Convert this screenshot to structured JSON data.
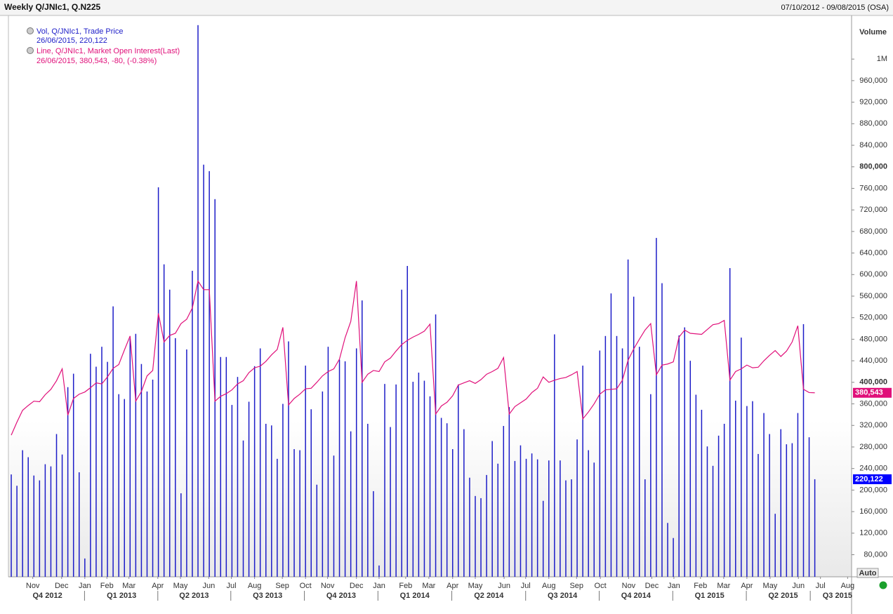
{
  "header": {
    "title": "Weekly Q/JNIc1, Q.N225",
    "range": "07/10/2012 - 09/08/2015 (OSA)"
  },
  "controls": {
    "auto": "Auto"
  },
  "chart_data": {
    "type": "combo",
    "y_axis_title": "Volume",
    "categories": [
      null,
      null,
      null,
      null,
      null,
      null,
      null,
      null,
      null,
      null,
      null,
      null,
      null,
      null,
      null,
      null,
      null,
      null,
      null,
      null,
      null,
      null,
      null,
      null,
      null,
      null,
      null,
      null,
      null,
      null,
      null,
      null,
      null,
      null,
      null,
      null,
      null,
      null,
      null,
      null,
      null,
      null,
      null,
      null,
      null,
      null,
      null,
      null,
      null,
      null,
      null,
      null,
      null,
      null,
      null,
      null,
      null,
      null,
      null,
      null,
      null,
      null,
      null,
      null,
      null,
      null,
      null,
      null,
      null,
      null,
      null,
      null,
      null,
      null,
      null,
      null,
      null,
      null,
      null,
      null,
      null,
      null,
      null,
      null,
      null,
      null,
      null,
      null,
      null,
      null,
      null,
      null,
      null,
      null,
      null,
      null,
      null,
      null,
      null,
      null,
      null,
      null,
      null,
      null,
      null,
      null,
      null,
      null,
      null,
      null,
      null,
      null,
      null,
      null,
      null,
      null,
      null,
      null,
      null,
      null,
      null,
      null,
      null,
      null,
      null,
      null,
      null,
      null,
      null,
      null,
      null,
      null,
      null,
      null,
      null,
      null,
      null,
      null,
      null,
      null,
      null,
      null,
      null
    ],
    "xlim": [
      -0.5,
      148.5
    ],
    "xticks": [
      {
        "value": 3.8,
        "label": "Nov"
      },
      {
        "value": 8.9,
        "label": "Dec"
      },
      {
        "value": 13.0,
        "label": "Jan"
      },
      {
        "value": 16.9,
        "label": "Feb"
      },
      {
        "value": 20.8,
        "label": "Mar"
      },
      {
        "value": 25.9,
        "label": "Apr"
      },
      {
        "value": 29.9,
        "label": "May"
      },
      {
        "value": 34.9,
        "label": "Jun"
      },
      {
        "value": 38.9,
        "label": "Jul"
      },
      {
        "value": 43.0,
        "label": "Aug"
      },
      {
        "value": 47.9,
        "label": "Sep"
      },
      {
        "value": 52.0,
        "label": "Oct"
      },
      {
        "value": 55.9,
        "label": "Nov"
      },
      {
        "value": 61.0,
        "label": "Dec"
      },
      {
        "value": 65.0,
        "label": "Jan"
      },
      {
        "value": 69.7,
        "label": "Feb"
      },
      {
        "value": 73.8,
        "label": "Mar"
      },
      {
        "value": 78.0,
        "label": "Apr"
      },
      {
        "value": 82.0,
        "label": "May"
      },
      {
        "value": 87.1,
        "label": "Jun"
      },
      {
        "value": 90.9,
        "label": "Jul"
      },
      {
        "value": 95.0,
        "label": "Aug"
      },
      {
        "value": 99.9,
        "label": "Sep"
      },
      {
        "value": 104.1,
        "label": "Oct"
      },
      {
        "value": 109.1,
        "label": "Nov"
      },
      {
        "value": 113.2,
        "label": "Dec"
      },
      {
        "value": 117.1,
        "label": "Jan"
      },
      {
        "value": 121.8,
        "label": "Feb"
      },
      {
        "value": 125.9,
        "label": "Mar"
      },
      {
        "value": 130.0,
        "label": "Apr"
      },
      {
        "value": 134.1,
        "label": "May"
      },
      {
        "value": 139.1,
        "label": "Jun"
      },
      {
        "value": 143.0,
        "label": "Jul"
      },
      {
        "value": 147.8,
        "label": "Aug"
      }
    ],
    "quarter_ticks": [
      {
        "value": 6.4,
        "label": "Q4 2012"
      },
      {
        "value": 19.5,
        "label": "Q1 2013"
      },
      {
        "value": 32.3,
        "label": "Q2 2013"
      },
      {
        "value": 45.3,
        "label": "Q3 2013"
      },
      {
        "value": 58.3,
        "label": "Q4 2013"
      },
      {
        "value": 71.3,
        "label": "Q1 2014"
      },
      {
        "value": 84.4,
        "label": "Q2 2014"
      },
      {
        "value": 97.4,
        "label": "Q3 2014"
      },
      {
        "value": 110.4,
        "label": "Q4 2014"
      },
      {
        "value": 123.4,
        "label": "Q1 2015"
      },
      {
        "value": 136.4,
        "label": "Q2 2015"
      },
      {
        "value": 146.0,
        "label": "Q3 2015"
      }
    ],
    "ylim": [
      39000,
      1081000
    ],
    "yticks": [
      {
        "value": 80000,
        "label": "80,000"
      },
      {
        "value": 120000,
        "label": "120,000"
      },
      {
        "value": 160000,
        "label": "160,000"
      },
      {
        "value": 200000,
        "label": "200,000"
      },
      {
        "value": 240000,
        "label": "240,000"
      },
      {
        "value": 280000,
        "label": "280,000"
      },
      {
        "value": 320000,
        "label": "320,000"
      },
      {
        "value": 360000,
        "label": "360,000"
      },
      {
        "value": 400000,
        "label": "400,000",
        "bold": true
      },
      {
        "value": 440000,
        "label": "440,000"
      },
      {
        "value": 480000,
        "label": "480,000"
      },
      {
        "value": 520000,
        "label": "520,000"
      },
      {
        "value": 560000,
        "label": "560,000"
      },
      {
        "value": 600000,
        "label": "600,000"
      },
      {
        "value": 640000,
        "label": "640,000"
      },
      {
        "value": 680000,
        "label": "680,000"
      },
      {
        "value": 720000,
        "label": "720,000"
      },
      {
        "value": 760000,
        "label": "760,000"
      },
      {
        "value": 800000,
        "label": "800,000",
        "bold": true
      },
      {
        "value": 840000,
        "label": "840,000"
      },
      {
        "value": 880000,
        "label": "880,000"
      },
      {
        "value": 920000,
        "label": "920,000"
      },
      {
        "value": 960000,
        "label": "960,000"
      },
      {
        "value": 1000000,
        "label": "1M"
      }
    ],
    "grid": false,
    "series": [
      {
        "name": "Vol, Q/JNIc1, Trade Price",
        "legend_detail": "26/06/2015, 220,122",
        "last_label": "220,122",
        "type": "bar",
        "color": "#1c1cc8",
        "label_color": "#0000ff",
        "values": [
          229000,
          208000,
          274000,
          261000,
          227000,
          218000,
          248000,
          244000,
          304000,
          266000,
          391000,
          416000,
          233000,
          73000,
          453000,
          429000,
          466000,
          438000,
          541000,
          378000,
          369000,
          481000,
          490000,
          434000,
          383000,
          405000,
          762000,
          619000,
          572000,
          482000,
          194000,
          461000,
          607000,
          1063000,
          804000,
          792000,
          740000,
          447000,
          447000,
          358000,
          410000,
          292000,
          364000,
          430000,
          463000,
          323000,
          320000,
          258000,
          360000,
          476000,
          276000,
          274000,
          431000,
          350000,
          210000,
          383000,
          466000,
          264000,
          442000,
          439000,
          309000,
          463000,
          552000,
          323000,
          198000,
          60000,
          397000,
          317000,
          396000,
          572000,
          616000,
          401000,
          418000,
          403000,
          374000,
          526000,
          334000,
          324000,
          276000,
          396000,
          313000,
          223000,
          189000,
          185000,
          228000,
          291000,
          249000,
          319000,
          354000,
          254000,
          283000,
          258000,
          268000,
          257000,
          180000,
          255000,
          489000,
          255000,
          218000,
          220000,
          294000,
          431000,
          274000,
          251000,
          459000,
          486000,
          565000,
          486000,
          463000,
          628000,
          559000,
          466000,
          220000,
          378000,
          668000,
          584000,
          139000,
          111000,
          487000,
          502000,
          440000,
          377000,
          349000,
          281000,
          245000,
          301000,
          323000,
          612000,
          366000,
          483000,
          356000,
          365000,
          267000,
          343000,
          304000,
          156000,
          313000,
          285000,
          287000,
          343000,
          508000,
          298000,
          220122
        ]
      },
      {
        "name": "Line, Q/JNIc1, Market Open Interest(Last)",
        "legend_detail": "26/06/2015, 380,543, -80, (-0.38%)",
        "last_label": "380,543",
        "type": "line",
        "color": "#e0107a",
        "label_color": "#e0107a",
        "values": [
          302000,
          326000,
          348000,
          357000,
          365000,
          364000,
          377000,
          387000,
          403000,
          425000,
          339000,
          370000,
          378000,
          382000,
          390000,
          399000,
          397000,
          410000,
          426000,
          433000,
          460000,
          486000,
          365000,
          383000,
          412000,
          422000,
          528000,
          475000,
          487000,
          491000,
          509000,
          517000,
          538000,
          588000,
          572000,
          572000,
          365000,
          374000,
          379000,
          386000,
          397000,
          403000,
          418000,
          427000,
          430000,
          439000,
          451000,
          461000,
          502000,
          358000,
          370000,
          378000,
          388000,
          389000,
          400000,
          412000,
          420000,
          425000,
          443000,
          483000,
          513000,
          588000,
          400000,
          415000,
          422000,
          420000,
          438000,
          445000,
          458000,
          470000,
          478000,
          484000,
          489000,
          495000,
          508000,
          341000,
          356000,
          363000,
          375000,
          395000,
          399000,
          403000,
          398000,
          405000,
          415000,
          420000,
          426000,
          446000,
          341000,
          355000,
          362000,
          369000,
          381000,
          389000,
          410000,
          400000,
          404000,
          407000,
          409000,
          414000,
          420000,
          332000,
          345000,
          360000,
          378000,
          386000,
          387000,
          388000,
          404000,
          441000,
          462000,
          480000,
          497000,
          509000,
          414000,
          432000,
          434000,
          438000,
          484000,
          497000,
          491000,
          490000,
          489000,
          498000,
          507000,
          509000,
          515000,
          404000,
          420000,
          425000,
          432000,
          427000,
          428000,
          440000,
          450000,
          459000,
          448000,
          458000,
          475000,
          505000,
          387000,
          381000,
          380543
        ]
      }
    ]
  }
}
